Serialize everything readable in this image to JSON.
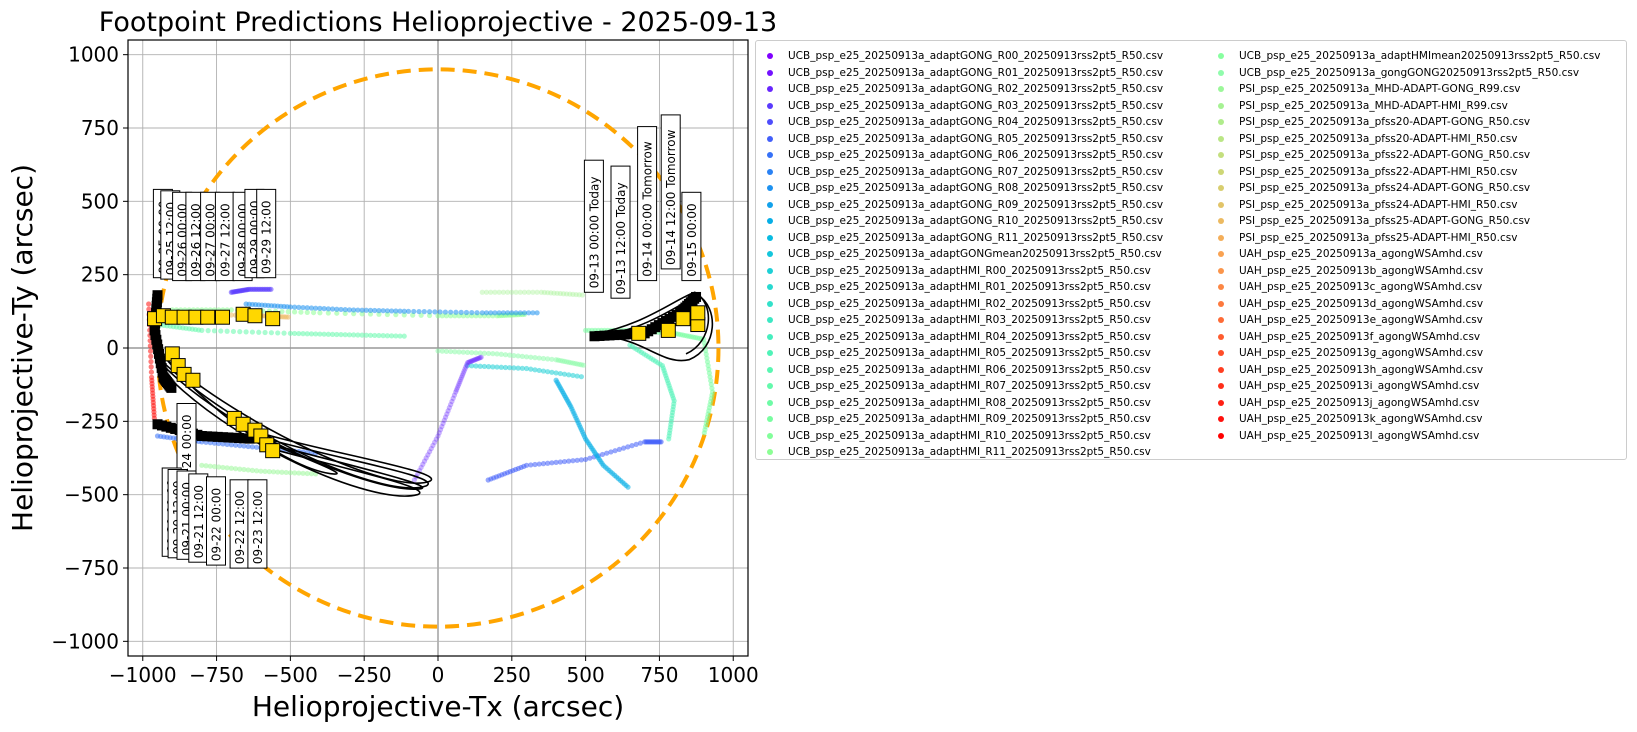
{
  "chart_data": {
    "type": "scatter",
    "title": "Footpoint Predictions Helioprojective - 2025-09-13",
    "xlabel": "Helioprojective-Tx (arcsec)",
    "ylabel": "Helioprojective-Ty (arcsec)",
    "xlim": [
      -1050,
      1050
    ],
    "ylim": [
      -1050,
      1050
    ],
    "xticks": [
      -1000,
      -750,
      -500,
      -250,
      0,
      250,
      500,
      750,
      1000
    ],
    "yticks": [
      -1000,
      -750,
      -500,
      -250,
      0,
      250,
      500,
      750,
      1000
    ],
    "xtick_labels": [
      "−1000",
      "−750",
      "−500",
      "−250",
      "0",
      "250",
      "500",
      "750",
      "1000"
    ],
    "ytick_labels": [
      "−1000",
      "−750",
      "−500",
      "−250",
      "0",
      "250",
      "500",
      "750",
      "1000"
    ],
    "grid": true,
    "legend_position": "outside-right",
    "solar_limb": {
      "radius": 950,
      "color": "#FFA500",
      "style": "dashed"
    },
    "series": [
      {
        "name": "UCB_psp_e25_20250913a_adaptGONG_R00_20250913rss2pt5_R50.csv",
        "color": "#8000ff"
      },
      {
        "name": "UCB_psp_e25_20250913a_adaptGONG_R01_20250913rss2pt5_R50.csv",
        "color": "#7412ff"
      },
      {
        "name": "UCB_psp_e25_20250913a_adaptGONG_R02_20250913rss2pt5_R50.csv",
        "color": "#6826fe"
      },
      {
        "name": "UCB_psp_e25_20250913a_adaptGONG_R03_20250913rss2pt5_R50.csv",
        "color": "#5a3afd"
      },
      {
        "name": "UCB_psp_e25_20250913a_adaptGONG_R04_20250913rss2pt5_R50.csv",
        "color": "#4e4dfc"
      },
      {
        "name": "UCB_psp_e25_20250913a_adaptGONG_R05_20250913rss2pt5_R50.csv",
        "color": "#425ffa"
      },
      {
        "name": "UCB_psp_e25_20250913a_adaptGONG_R06_20250913rss2pt5_R50.csv",
        "color": "#3671f7"
      },
      {
        "name": "UCB_psp_e25_20250913a_adaptGONG_R07_20250913rss2pt5_R50.csv",
        "color": "#2a82f4"
      },
      {
        "name": "UCB_psp_e25_20250913a_adaptGONG_R08_20250913rss2pt5_R50.csv",
        "color": "#1e92f0"
      },
      {
        "name": "UCB_psp_e25_20250913a_adaptGONG_R09_20250913rss2pt5_R50.csv",
        "color": "#12a1eb"
      },
      {
        "name": "UCB_psp_e25_20250913a_adaptGONG_R10_20250913rss2pt5_R50.csv",
        "color": "#06aee6"
      },
      {
        "name": "UCB_psp_e25_20250913a_adaptGONG_R11_20250913rss2pt5_R50.csv",
        "color": "#08bbe1"
      },
      {
        "name": "UCB_psp_e25_20250913a_adaptGONGmean20250913rss2pt5_R50.csv",
        "color": "#14c6dc"
      },
      {
        "name": "UCB_psp_e25_20250913a_adaptHMI_R00_20250913rss2pt5_R50.csv",
        "color": "#1ed0d6"
      },
      {
        "name": "UCB_psp_e25_20250913a_adaptHMI_R01_20250913rss2pt5_R50.csv",
        "color": "#28d9d0"
      },
      {
        "name": "UCB_psp_e25_20250913a_adaptHMI_R02_20250913rss2pt5_R50.csv",
        "color": "#32e1ca"
      },
      {
        "name": "UCB_psp_e25_20250913a_adaptHMI_R03_20250913rss2pt5_R50.csv",
        "color": "#3ce8c4"
      },
      {
        "name": "UCB_psp_e25_20250913a_adaptHMI_R04_20250913rss2pt5_R50.csv",
        "color": "#46eebe"
      },
      {
        "name": "UCB_psp_e25_20250913a_adaptHMI_R05_20250913rss2pt5_R50.csv",
        "color": "#50f3b8"
      },
      {
        "name": "UCB_psp_e25_20250913a_adaptHMI_R06_20250913rss2pt5_R50.csv",
        "color": "#5af6b2"
      },
      {
        "name": "UCB_psp_e25_20250913a_adaptHMI_R07_20250913rss2pt5_R50.csv",
        "color": "#64f9ac"
      },
      {
        "name": "UCB_psp_e25_20250913a_adaptHMI_R08_20250913rss2pt5_R50.csv",
        "color": "#6efba6"
      },
      {
        "name": "UCB_psp_e25_20250913a_adaptHMI_R09_20250913rss2pt5_R50.csv",
        "color": "#78fda0"
      },
      {
        "name": "UCB_psp_e25_20250913a_adaptHMI_R10_20250913rss2pt5_R50.csv",
        "color": "#82fe9a"
      },
      {
        "name": "UCB_psp_e25_20250913a_adaptHMI_R11_20250913rss2pt5_R50.csv",
        "color": "#8cff94"
      },
      {
        "name": "UCB_psp_e25_20250913a_adaptHMImean20250913rss2pt5_R50.csv",
        "color": "#88ffa0"
      },
      {
        "name": "UCB_psp_e25_20250913a_gongGONG20250913rss2pt5_R50.csv",
        "color": "#90fcac"
      },
      {
        "name": "PSI_psp_e25_20250913a_MHD-ADAPT-GONG_R99.csv",
        "color": "#9cf79a"
      },
      {
        "name": "PSI_psp_e25_20250913a_MHD-ADAPT-HMI_R99.csv",
        "color": "#a6f293"
      },
      {
        "name": "PSI_psp_e25_20250913a_pfss20-ADAPT-GONG_R50.csv",
        "color": "#b0ec8c"
      },
      {
        "name": "PSI_psp_e25_20250913a_pfss20-ADAPT-HMI_R50.csv",
        "color": "#bae685"
      },
      {
        "name": "PSI_psp_e25_20250913a_pfss22-ADAPT-GONG_R50.csv",
        "color": "#c4df7e"
      },
      {
        "name": "PSI_psp_e25_20250913a_pfss22-ADAPT-HMI_R50.csv",
        "color": "#ced776"
      },
      {
        "name": "PSI_psp_e25_20250913a_pfss24-ADAPT-GONG_R50.csv",
        "color": "#d8ce6f"
      },
      {
        "name": "PSI_psp_e25_20250913a_pfss24-ADAPT-HMI_R50.csv",
        "color": "#e2c468"
      },
      {
        "name": "PSI_psp_e25_20250913a_pfss25-ADAPT-GONG_R50.csv",
        "color": "#ecba61"
      },
      {
        "name": "PSI_psp_e25_20250913a_pfss25-ADAPT-HMI_R50.csv",
        "color": "#f4ae59"
      },
      {
        "name": "UAH_psp_e25_20250913a_agongWSAmhd.csv",
        "color": "#f9a252"
      },
      {
        "name": "UAH_psp_e25_20250913b_agongWSAmhd.csv",
        "color": "#fb954b"
      },
      {
        "name": "UAH_psp_e25_20250913c_agongWSAmhd.csv",
        "color": "#fc8744"
      },
      {
        "name": "UAH_psp_e25_20250913d_agongWSAmhd.csv",
        "color": "#fd793d"
      },
      {
        "name": "UAH_psp_e25_20250913e_agongWSAmhd.csv",
        "color": "#fe6b36"
      },
      {
        "name": "UAH_psp_e25_20250913f_agongWSAmhd.csv",
        "color": "#fe5c2f"
      },
      {
        "name": "UAH_psp_e25_20250913g_agongWSAmhd.csv",
        "color": "#ff4d28"
      },
      {
        "name": "UAH_psp_e25_20250913h_agongWSAmhd.csv",
        "color": "#ff3e21"
      },
      {
        "name": "UAH_psp_e25_20250913i_agongWSAmhd.csv",
        "color": "#ff2f1a"
      },
      {
        "name": "UAH_psp_e25_20250913j_agongWSAmhd.csv",
        "color": "#ff2014"
      },
      {
        "name": "UAH_psp_e25_20250913k_agongWSAmhd.csv",
        "color": "#ff110d"
      },
      {
        "name": "UAH_psp_e25_20250913l_agongWSAmhd.csv",
        "color": "#ff0000"
      }
    ],
    "annotations": [
      {
        "text": "09-13 00:00 Today",
        "x": 540,
        "y": 200
      },
      {
        "text": "09-13 12:00 Today",
        "x": 630,
        "y": 180
      },
      {
        "text": "09-14 00:00 Tomorrow",
        "x": 720,
        "y": 240
      },
      {
        "text": "09-14 12:00 Tomorrow",
        "x": 800,
        "y": 280
      },
      {
        "text": "09-15 00:00",
        "x": 870,
        "y": 240
      },
      {
        "text": "09-25 00:00",
        "x": -920,
        "y": 250
      },
      {
        "text": "09-25 12:00",
        "x": -895,
        "y": 245
      },
      {
        "text": "09-26 00:00",
        "x": -855,
        "y": 240
      },
      {
        "text": "09-26 12:00",
        "x": -810,
        "y": 240
      },
      {
        "text": "09-27 00:00",
        "x": -760,
        "y": 240
      },
      {
        "text": "09-27 12:00",
        "x": -710,
        "y": 240
      },
      {
        "text": "09-28 00:00",
        "x": -650,
        "y": 240
      },
      {
        "text": "09-29 00:00",
        "x": -610,
        "y": 250
      },
      {
        "text": "09-29 12:00",
        "x": -570,
        "y": 250
      },
      {
        "text": "09-24 00:00",
        "x": -840,
        "y": -480
      },
      {
        "text": "09-20 00:00",
        "x": -890,
        "y": -700
      },
      {
        "text": "09-20 12:00",
        "x": -870,
        "y": -705
      },
      {
        "text": "09-21 00:00",
        "x": -840,
        "y": -710
      },
      {
        "text": "09-21 12:00",
        "x": -800,
        "y": -720
      },
      {
        "text": "09-22 00:00",
        "x": -740,
        "y": -730
      },
      {
        "text": "09-22 12:00",
        "x": -660,
        "y": -740
      },
      {
        "text": "09-23 12:00",
        "x": -600,
        "y": -740
      }
    ],
    "markers": [
      {
        "x": -960,
        "y": 100
      },
      {
        "x": -930,
        "y": 110
      },
      {
        "x": -900,
        "y": 105
      },
      {
        "x": -860,
        "y": 105
      },
      {
        "x": -820,
        "y": 105
      },
      {
        "x": -780,
        "y": 105
      },
      {
        "x": -730,
        "y": 105
      },
      {
        "x": -660,
        "y": 115
      },
      {
        "x": -620,
        "y": 110
      },
      {
        "x": -560,
        "y": 100
      },
      {
        "x": -900,
        "y": -20
      },
      {
        "x": -880,
        "y": -60
      },
      {
        "x": -860,
        "y": -90
      },
      {
        "x": -830,
        "y": -110
      },
      {
        "x": -690,
        "y": -240
      },
      {
        "x": -660,
        "y": -260
      },
      {
        "x": -620,
        "y": -280
      },
      {
        "x": -600,
        "y": -300
      },
      {
        "x": -580,
        "y": -330
      },
      {
        "x": -560,
        "y": -350
      },
      {
        "x": 680,
        "y": 50
      },
      {
        "x": 780,
        "y": 60
      },
      {
        "x": 830,
        "y": 100
      },
      {
        "x": 880,
        "y": 80
      },
      {
        "x": 880,
        "y": 120
      }
    ],
    "trajectory_color": "#000000"
  }
}
